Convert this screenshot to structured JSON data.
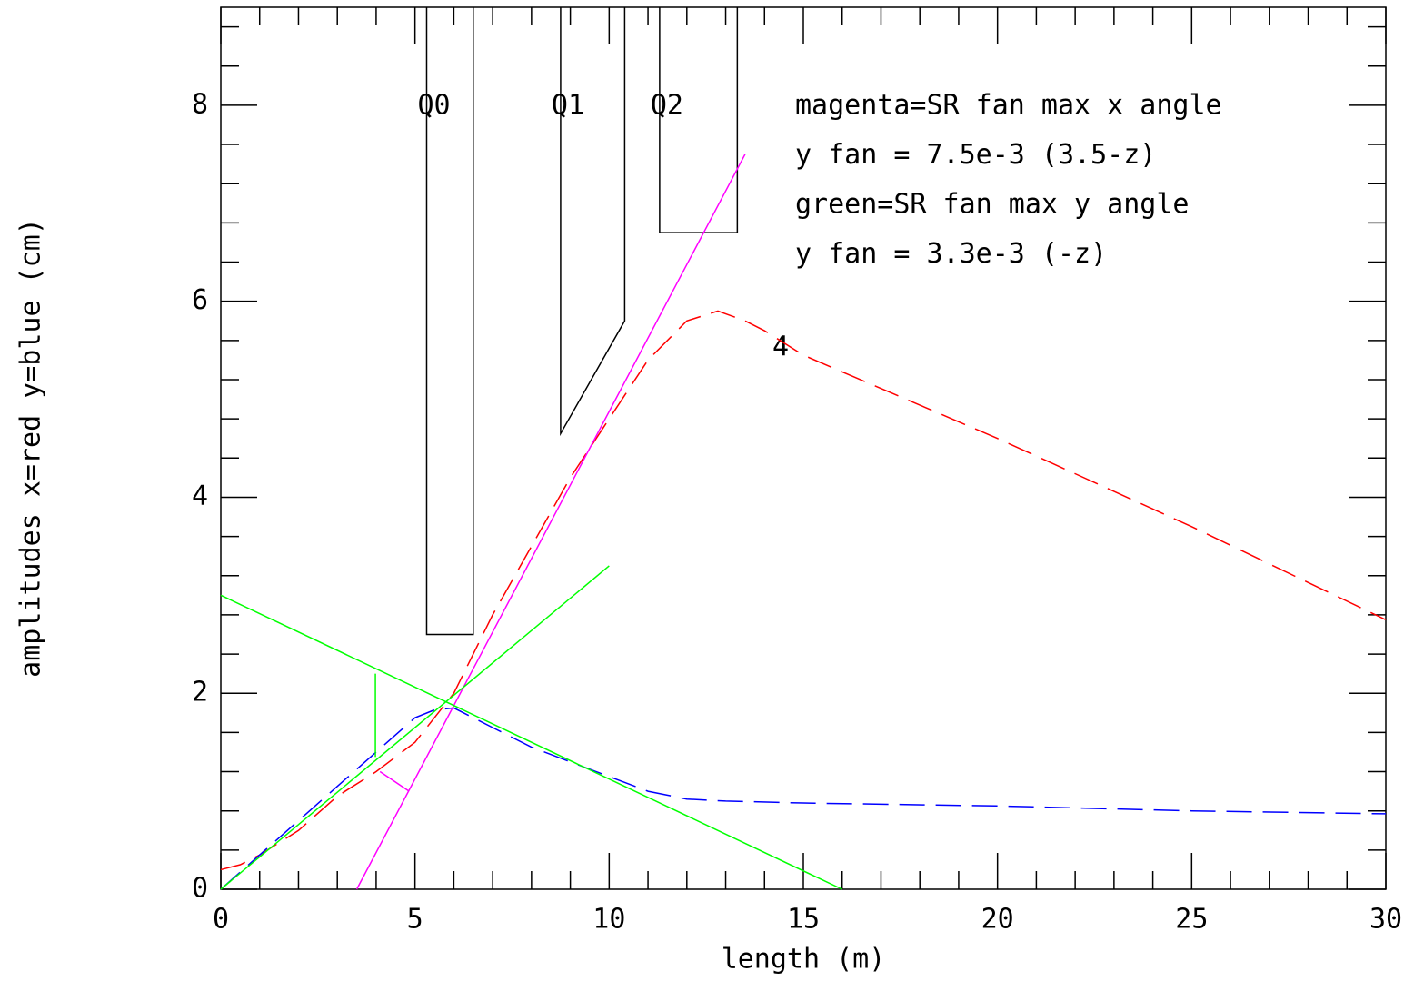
{
  "chart_data": {
    "type": "line",
    "x_label": "length (m)",
    "y_label": "amplitudes x=red y=blue (cm)",
    "xlim": [
      0,
      30
    ],
    "ylim": [
      0,
      9
    ],
    "xticks": [
      0,
      5,
      10,
      15,
      20,
      25,
      30
    ],
    "yticks": [
      0,
      2,
      4,
      6,
      8
    ],
    "series": [
      {
        "color": "#ff0000",
        "style": "dashed",
        "x": [
          0,
          0.5,
          1,
          2,
          3,
          4,
          5,
          6,
          6.5,
          7,
          8,
          9,
          10,
          11,
          12,
          12.8,
          13.5,
          14,
          15,
          20,
          25,
          30
        ],
        "values": [
          0.2,
          0.25,
          0.35,
          0.6,
          0.95,
          1.2,
          1.5,
          2.0,
          2.4,
          2.8,
          3.5,
          4.2,
          4.8,
          5.4,
          5.8,
          5.9,
          5.8,
          5.7,
          5.45,
          4.6,
          3.7,
          2.75
        ]
      },
      {
        "color": "#0000ff",
        "style": "dashed",
        "x": [
          0,
          1,
          2,
          3,
          4,
          5,
          5.5,
          6,
          7,
          8,
          9,
          10,
          11,
          12,
          13,
          15,
          20,
          25,
          30
        ],
        "values": [
          0,
          0.35,
          0.7,
          1.05,
          1.4,
          1.75,
          1.83,
          1.85,
          1.65,
          1.45,
          1.3,
          1.15,
          1.0,
          0.92,
          0.9,
          0.88,
          0.85,
          0.8,
          0.77
        ]
      },
      {
        "color": "#ff00ff",
        "style": "solid",
        "x": [
          3.5,
          13.5
        ],
        "values": [
          0,
          7.5
        ]
      },
      {
        "color": "#ff00ff",
        "style": "solid",
        "x": [
          4.1,
          4.85
        ],
        "values": [
          1.2,
          1.0
        ]
      },
      {
        "color": "#00ff00",
        "style": "solid",
        "x": [
          0,
          10
        ],
        "values": [
          0,
          3.3
        ]
      },
      {
        "color": "#00ff00",
        "style": "solid",
        "x": [
          0,
          16
        ],
        "values": [
          3,
          0
        ]
      },
      {
        "color": "#00ff00",
        "style": "solid",
        "x": [
          3.98,
          3.98
        ],
        "values": [
          1.35,
          2.2
        ]
      }
    ],
    "magnets": [
      {
        "label": "Q0",
        "x": [
          5.3,
          5.3,
          6.5,
          6.5
        ],
        "y": [
          9,
          2.6,
          2.6,
          9
        ]
      },
      {
        "label": "Q1",
        "x": [
          8.75,
          8.75,
          10.4,
          10.4
        ],
        "y": [
          9,
          4.65,
          5.8,
          9
        ]
      },
      {
        "label": "Q2",
        "x": [
          11.3,
          11.3,
          13.3,
          13.3
        ],
        "y": [
          9,
          6.7,
          6.7,
          9
        ]
      }
    ],
    "annotation": {
      "text": "4",
      "color": "#ff0000"
    },
    "notes": [
      {
        "text": "magenta=SR fan max x angle",
        "color": "#ff00ff"
      },
      {
        "text": "y fan = 7.5e-3 (3.5-z)",
        "color": "#ff00ff"
      },
      {
        "text": "green=SR fan max y angle",
        "color": "#00ff00"
      },
      {
        "text": "y fan = 3.3e-3 (-z)",
        "color": "#00ff00"
      }
    ]
  }
}
